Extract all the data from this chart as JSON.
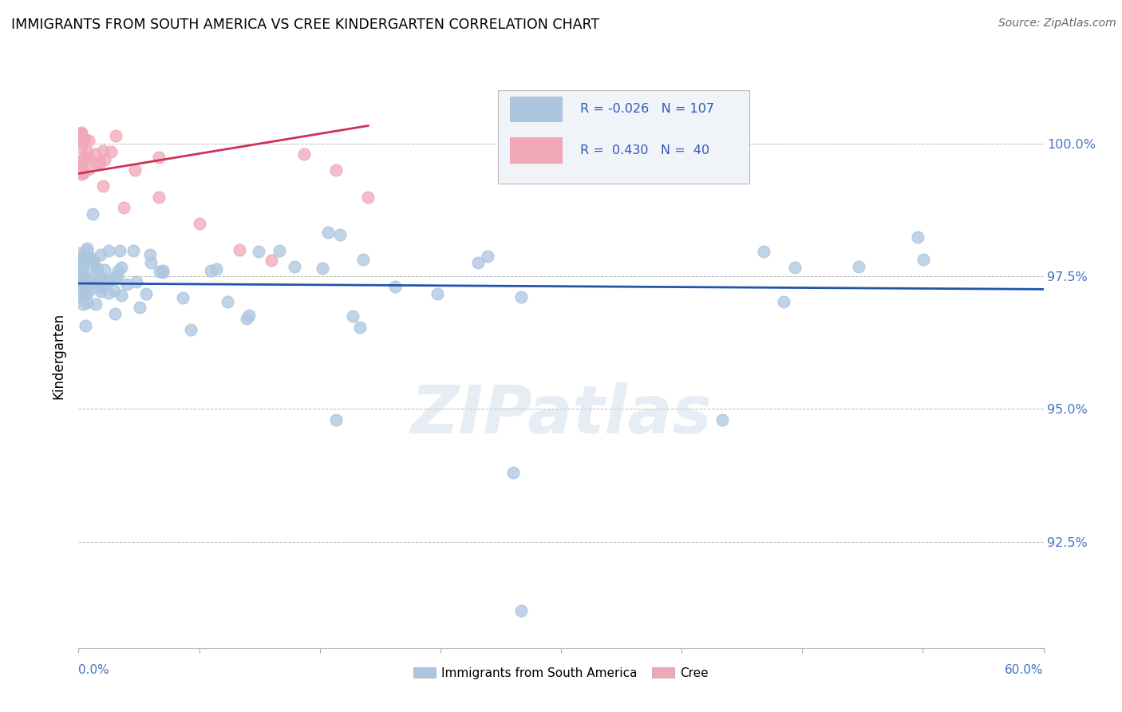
{
  "title": "IMMIGRANTS FROM SOUTH AMERICA VS CREE KINDERGARTEN CORRELATION CHART",
  "source": "Source: ZipAtlas.com",
  "ylabel": "Kindergarten",
  "xmin": 0.0,
  "xmax": 60.0,
  "ymin": 90.5,
  "ymax": 101.5,
  "watermark": "ZIPatlas",
  "legend_blue_r": "-0.026",
  "legend_blue_n": "107",
  "legend_pink_r": "0.430",
  "legend_pink_n": "40",
  "blue_color": "#adc6e0",
  "blue_line_color": "#2255aa",
  "pink_color": "#f0a8b8",
  "pink_line_color": "#cc3355",
  "ytick_positions": [
    92.5,
    95.0,
    97.5,
    100.0
  ],
  "ytick_labels": [
    "92.5%",
    "95.0%",
    "97.5%",
    "100.0%"
  ]
}
